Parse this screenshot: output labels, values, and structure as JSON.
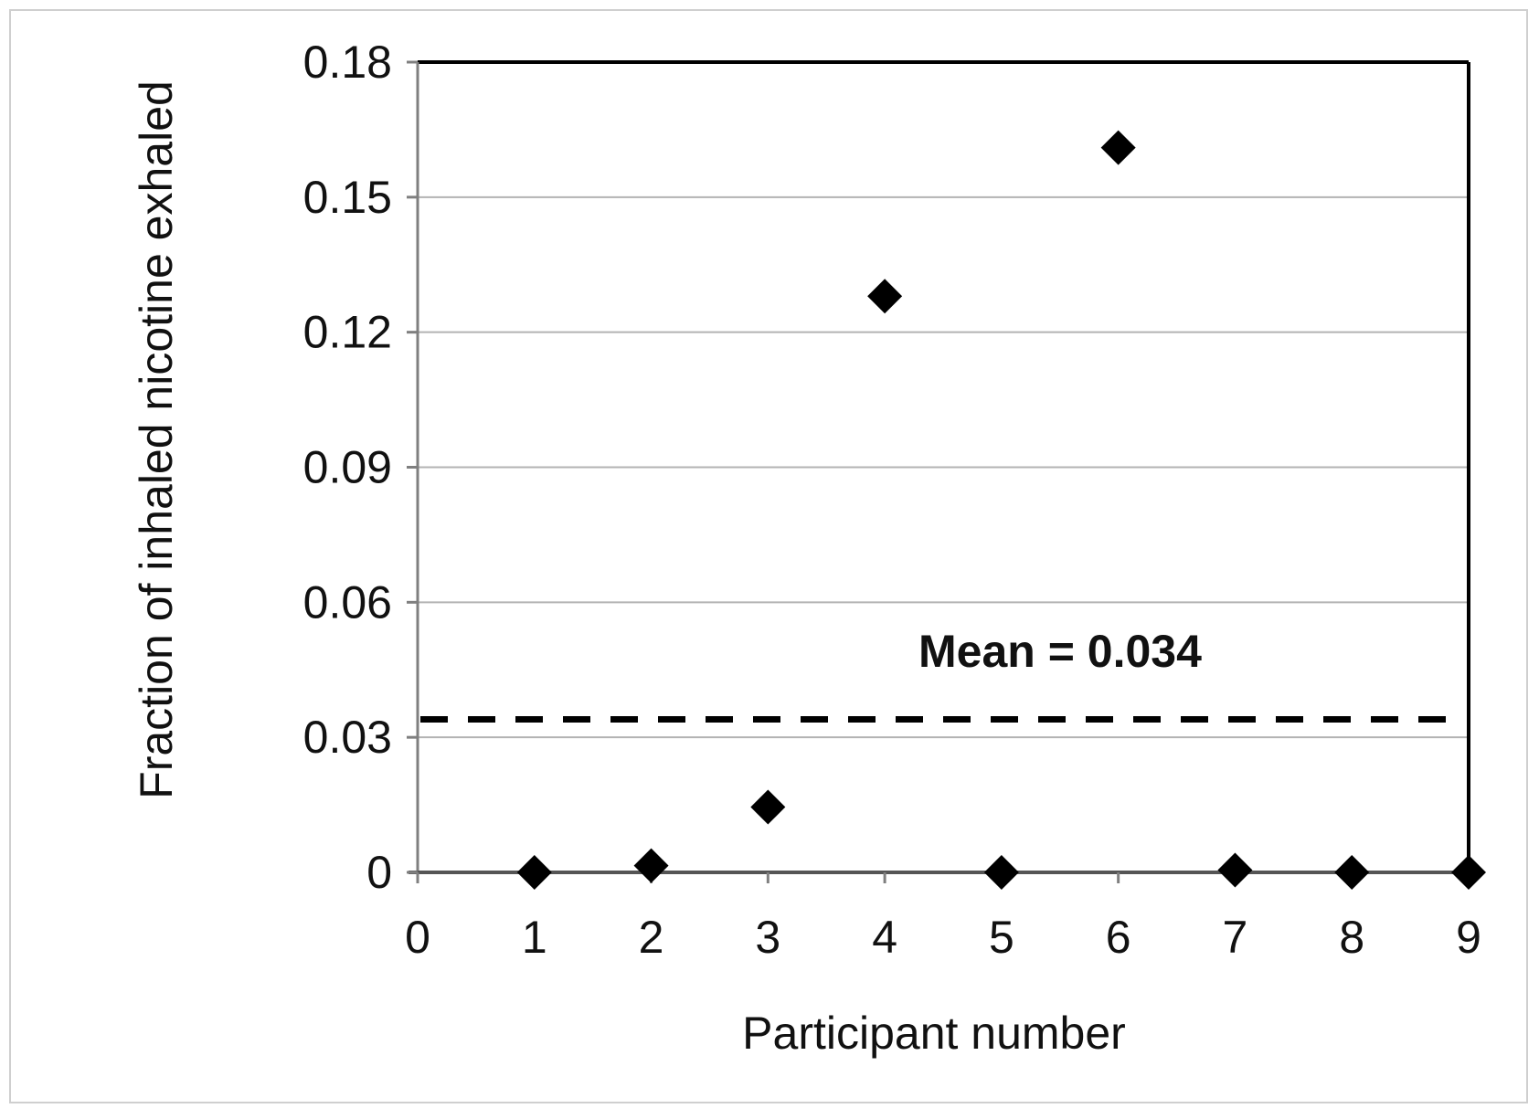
{
  "chart_data": {
    "type": "scatter",
    "title": "",
    "xlabel": "Participant number",
    "ylabel": "Fraction of inhaled nicotine exhaled",
    "xlim": [
      0,
      9
    ],
    "ylim": [
      0,
      0.18
    ],
    "x_ticks": [
      "0",
      "1",
      "2",
      "3",
      "4",
      "5",
      "6",
      "7",
      "8",
      "9"
    ],
    "y_ticks": [
      "0",
      "0.03",
      "0.06",
      "0.09",
      "0.12",
      "0.15",
      "0.18"
    ],
    "grid": "horizontal",
    "marker": "diamond",
    "marker_color": "#000000",
    "series": [
      {
        "x": [
          1,
          2,
          3,
          4,
          5,
          6,
          7,
          8,
          9
        ],
        "y": [
          0.0,
          0.0015,
          0.0145,
          0.128,
          0.0,
          0.161,
          0.0005,
          0.0,
          0.0
        ]
      }
    ],
    "reference_line": {
      "y": 0.034,
      "style": "dashed",
      "label": "Mean = 0.034"
    }
  }
}
